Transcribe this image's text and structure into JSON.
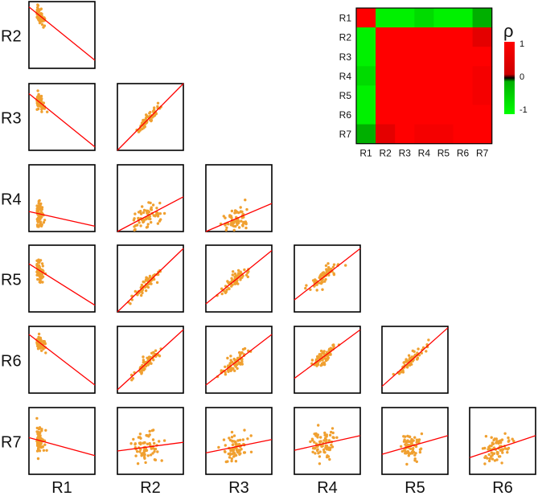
{
  "chart_data": {
    "type": "scatter-matrix",
    "variables": [
      "R1",
      "R2",
      "R3",
      "R4",
      "R5",
      "R6",
      "R7"
    ],
    "row_labels": [
      "R2",
      "R3",
      "R4",
      "R5",
      "R6",
      "R7"
    ],
    "col_labels": [
      "R1",
      "R2",
      "R3",
      "R4",
      "R5",
      "R6"
    ],
    "point_color": "#f0a030",
    "line_color": "#ff0000",
    "trend_lines": [
      {
        "row": "R2",
        "col": "R1",
        "y_left": 0.92,
        "y_right": 0.12
      },
      {
        "row": "R3",
        "col": "R1",
        "y_left": 0.85,
        "y_right": 0.05
      },
      {
        "row": "R3",
        "col": "R2",
        "y_left": 0.0,
        "y_right": 1.0
      },
      {
        "row": "R4",
        "col": "R1",
        "y_left": 0.3,
        "y_right": 0.08
      },
      {
        "row": "R4",
        "col": "R2",
        "y_left": 0.0,
        "y_right": 0.52
      },
      {
        "row": "R4",
        "col": "R3",
        "y_left": 0.0,
        "y_right": 0.42
      },
      {
        "row": "R5",
        "col": "R1",
        "y_left": 0.72,
        "y_right": 0.1
      },
      {
        "row": "R5",
        "col": "R2",
        "y_left": 0.0,
        "y_right": 0.95
      },
      {
        "row": "R5",
        "col": "R3",
        "y_left": 0.12,
        "y_right": 0.92
      },
      {
        "row": "R5",
        "col": "R4",
        "y_left": 0.18,
        "y_right": 0.95
      },
      {
        "row": "R6",
        "col": "R1",
        "y_left": 0.88,
        "y_right": 0.12
      },
      {
        "row": "R6",
        "col": "R2",
        "y_left": 0.05,
        "y_right": 0.95
      },
      {
        "row": "R6",
        "col": "R3",
        "y_left": 0.12,
        "y_right": 0.88
      },
      {
        "row": "R6",
        "col": "R4",
        "y_left": 0.22,
        "y_right": 0.95
      },
      {
        "row": "R6",
        "col": "R5",
        "y_left": 0.1,
        "y_right": 0.98
      },
      {
        "row": "R7",
        "col": "R1",
        "y_left": 0.55,
        "y_right": 0.28
      },
      {
        "row": "R7",
        "col": "R2",
        "y_left": 0.35,
        "y_right": 0.48
      },
      {
        "row": "R7",
        "col": "R3",
        "y_left": 0.32,
        "y_right": 0.52
      },
      {
        "row": "R7",
        "col": "R4",
        "y_left": 0.36,
        "y_right": 0.58
      },
      {
        "row": "R7",
        "col": "R5",
        "y_left": 0.3,
        "y_right": 0.58
      },
      {
        "row": "R7",
        "col": "R6",
        "y_left": 0.25,
        "y_right": 0.58
      }
    ],
    "heatmap": {
      "type": "heatmap",
      "rows": [
        "R1",
        "R2",
        "R3",
        "R4",
        "R5",
        "R6",
        "R7"
      ],
      "columns": [
        "R1",
        "R2",
        "R3",
        "R4",
        "R5",
        "R6",
        "R7"
      ],
      "values": [
        [
          1.0,
          -0.9,
          -0.9,
          -0.75,
          -0.9,
          -0.9,
          -0.45
        ],
        [
          -0.9,
          1.0,
          0.95,
          0.9,
          0.95,
          0.95,
          0.55
        ],
        [
          -0.9,
          0.95,
          1.0,
          0.9,
          0.95,
          0.95,
          0.75
        ],
        [
          -0.75,
          0.9,
          0.9,
          1.0,
          0.9,
          0.9,
          0.6
        ],
        [
          -0.9,
          0.95,
          0.95,
          0.9,
          1.0,
          0.95,
          0.6
        ],
        [
          -0.9,
          0.95,
          0.95,
          0.9,
          0.95,
          1.0,
          0.75
        ],
        [
          -0.45,
          0.55,
          0.75,
          0.6,
          0.6,
          0.75,
          1.0
        ]
      ],
      "colorbar": {
        "label": "ρ",
        "ticks": [
          "1",
          "0",
          "-1"
        ],
        "min": -1,
        "max": 1,
        "colors": {
          "positive": "#ff0000",
          "zero": "#000000",
          "negative": "#00ff00"
        }
      }
    }
  }
}
